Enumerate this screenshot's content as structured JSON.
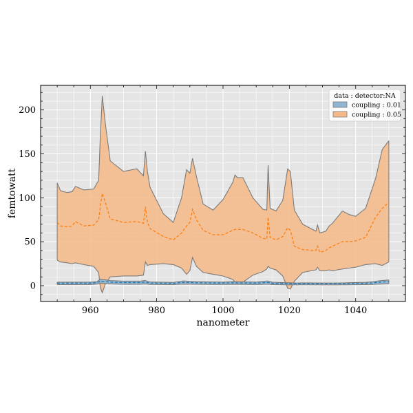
{
  "chart_data": {
    "type": "area",
    "title": "",
    "xlabel": "nanometer",
    "ylabel": "femtowatt",
    "xlim": [
      945,
      1055
    ],
    "ylim": [
      -18,
      228
    ],
    "xticks": [
      960,
      980,
      1000,
      1020,
      1040
    ],
    "yticks": [
      0,
      50,
      100,
      150,
      200
    ],
    "grid": true,
    "legend": {
      "title": "data : detector:NA",
      "placement": "top-right"
    },
    "colors": {
      "plot_background": "#e5e5e5",
      "grid": "#ffffff",
      "band_edge": "#7a7a7a"
    },
    "series": [
      {
        "name": "coupling : 0.05",
        "color": "#ff7f0e",
        "fill": "#f5b98a",
        "x": [
          950,
          951,
          953,
          954.5,
          955.5,
          958,
          961,
          962.5,
          963,
          963.6,
          964.5,
          966,
          970,
          974,
          976,
          976.6,
          977.2,
          978,
          982,
          985,
          987.5,
          989,
          990,
          990.8,
          992,
          994,
          997,
          1000,
          1003,
          1003.6,
          1004.3,
          1006,
          1009,
          1012,
          1013.2,
          1013.6,
          1014.2,
          1016,
          1018,
          1019.5,
          1020.3,
          1021.5,
          1024,
          1028,
          1028.5,
          1029.2,
          1031,
          1032,
          1033,
          1036,
          1038,
          1040,
          1043,
          1046,
          1048,
          1050
        ],
        "upper": [
          117,
          108,
          106,
          107,
          113,
          109,
          110,
          120,
          170,
          216,
          185,
          142,
          130,
          133,
          125,
          153,
          130,
          112,
          82,
          72,
          100,
          132,
          128,
          145,
          124,
          93,
          86,
          98,
          118,
          126,
          123,
          123,
          100,
          87,
          86,
          137,
          88,
          85,
          97,
          133,
          130,
          86,
          70,
          62,
          69,
          60,
          62,
          68,
          71,
          85,
          81,
          79,
          88,
          122,
          155,
          165
        ],
        "middle": [
          72,
          68,
          67,
          68,
          73,
          68,
          69,
          75,
          90,
          105,
          95,
          76,
          72,
          73,
          71,
          90,
          72,
          65,
          56,
          52,
          60,
          68,
          72,
          87,
          75,
          63,
          58,
          58,
          63,
          64,
          64,
          64,
          60,
          54,
          53,
          78,
          55,
          52,
          56,
          66,
          63,
          45,
          41,
          40,
          45,
          38,
          40,
          43,
          45,
          50,
          50,
          51,
          55,
          78,
          88,
          95
        ],
        "lower": [
          29,
          27,
          26,
          25,
          26,
          24,
          22,
          15,
          -2,
          -8,
          2,
          10,
          11,
          11,
          12,
          27,
          23,
          24,
          25,
          24,
          20,
          13,
          17,
          32,
          22,
          15,
          13,
          11,
          7,
          4,
          3,
          4,
          12,
          16,
          19,
          22,
          20,
          18,
          11,
          -3,
          -4,
          5,
          15,
          18,
          21,
          17,
          17,
          18,
          17,
          19,
          20,
          21,
          24,
          25,
          23,
          27
        ]
      },
      {
        "name": "coupling : 0.01",
        "color": "#1f77b4",
        "fill": "#8fb5d2",
        "x": [
          950,
          955,
          960,
          962,
          963,
          964,
          966,
          970,
          975,
          976.5,
          978,
          985,
          988,
          990,
          992,
          997,
          1000,
          1003,
          1005,
          1010,
          1013.5,
          1015,
          1018,
          1020,
          1022,
          1025,
          1030,
          1035,
          1040,
          1043,
          1045,
          1047,
          1050
        ],
        "upper": [
          4.0,
          4.0,
          4.0,
          4.6,
          7.5,
          7.0,
          5.8,
          5.2,
          5.2,
          5.8,
          4.2,
          3.7,
          5.4,
          5.0,
          4.6,
          4.2,
          4.1,
          4.6,
          4.4,
          4.1,
          5.4,
          3.9,
          3.5,
          3.3,
          3.0,
          3.2,
          3.0,
          3.0,
          3.6,
          3.8,
          4.4,
          5.5,
          6.5
        ],
        "middle": [
          2.8,
          2.8,
          2.9,
          3.4,
          5.2,
          4.8,
          4.0,
          3.6,
          3.6,
          4.0,
          3.0,
          2.6,
          3.8,
          3.6,
          3.3,
          3.0,
          3.0,
          3.2,
          3.1,
          2.9,
          3.7,
          2.7,
          2.4,
          2.3,
          2.1,
          2.2,
          2.1,
          2.1,
          2.5,
          2.7,
          3.1,
          4.0,
          4.6
        ],
        "lower": [
          1.2,
          1.2,
          1.3,
          1.8,
          3.0,
          2.6,
          2.0,
          1.6,
          1.6,
          2.0,
          1.4,
          1.2,
          1.8,
          1.7,
          1.6,
          1.4,
          1.4,
          1.5,
          1.5,
          1.3,
          1.7,
          1.2,
          1.0,
          0.9,
          0.9,
          1.0,
          0.9,
          0.9,
          1.1,
          1.2,
          1.4,
          1.8,
          2.1
        ]
      }
    ],
    "legend_order": [
      "coupling : 0.01",
      "coupling : 0.05"
    ]
  }
}
